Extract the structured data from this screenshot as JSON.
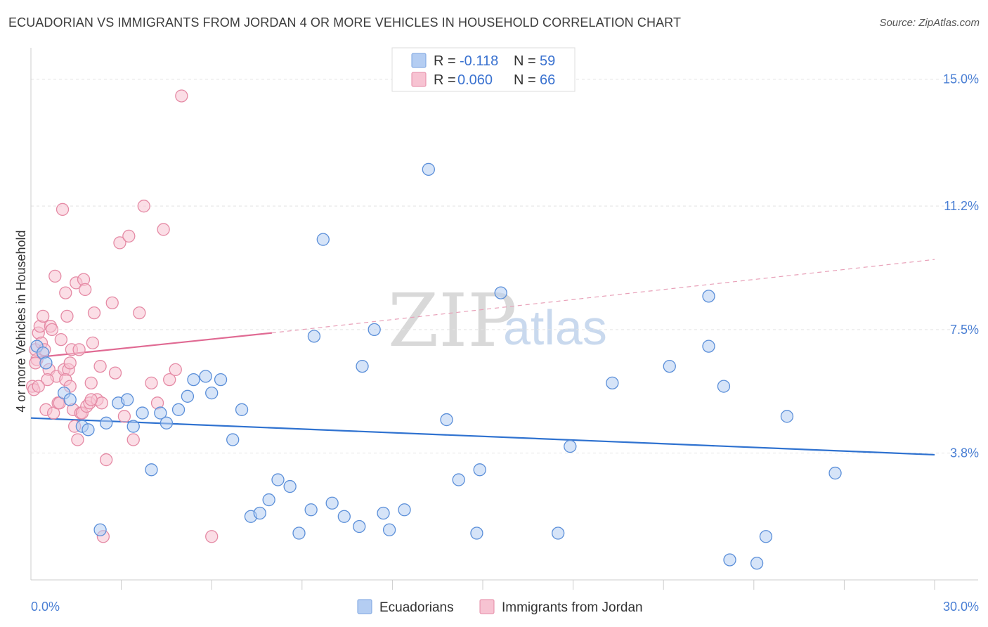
{
  "header": {
    "title": "ECUADORIAN VS IMMIGRANTS FROM JORDAN 4 OR MORE VEHICLES IN HOUSEHOLD CORRELATION CHART",
    "source": "Source: ZipAtlas.com"
  },
  "watermark": {
    "zip": "ZIP",
    "atlas": "atlas"
  },
  "legend_top": {
    "r_label": "R =",
    "n_label": "N =",
    "rows": [
      {
        "r": "-0.118",
        "n": "59",
        "color": "#a8c4f0"
      },
      {
        "r": "0.060",
        "n": "66",
        "color": "#f5b8cb"
      }
    ]
  },
  "legend_bottom": [
    {
      "label": "Ecuadorians",
      "color": "#a8c4f0"
    },
    {
      "label": "Immigrants from Jordan",
      "color": "#f5b8cb"
    }
  ],
  "chart_data": {
    "type": "scatter",
    "title": "ECUADORIAN VS IMMIGRANTS FROM JORDAN 4 OR MORE VEHICLES IN HOUSEHOLD CORRELATION CHART",
    "xlabel": "",
    "ylabel": "4 or more Vehicles in Household",
    "xlim": [
      0,
      30
    ],
    "ylim": [
      0,
      15.9
    ],
    "x_tick_labels": [
      "0.0%",
      "30.0%"
    ],
    "y_ticks": [
      3.8,
      7.5,
      11.2,
      15.0
    ],
    "y_tick_labels": [
      "3.8%",
      "7.5%",
      "11.2%",
      "15.0%"
    ],
    "grid": true,
    "series": [
      {
        "name": "Ecuadorians",
        "color": "#5b8fd9",
        "fill": "#b4cdf2",
        "trend": {
          "x": [
            0,
            30
          ],
          "y": [
            4.85,
            3.75
          ],
          "color": "#2f72d0"
        },
        "points": [
          [
            0.2,
            7.0
          ],
          [
            0.4,
            6.8
          ],
          [
            0.5,
            6.5
          ],
          [
            1.1,
            5.6
          ],
          [
            1.3,
            5.4
          ],
          [
            1.7,
            4.6
          ],
          [
            1.9,
            4.5
          ],
          [
            2.3,
            1.5
          ],
          [
            2.5,
            4.7
          ],
          [
            2.9,
            5.3
          ],
          [
            3.2,
            5.4
          ],
          [
            3.4,
            4.6
          ],
          [
            3.7,
            5.0
          ],
          [
            4.0,
            3.3
          ],
          [
            4.3,
            5.0
          ],
          [
            4.5,
            4.7
          ],
          [
            4.9,
            5.1
          ],
          [
            5.2,
            5.5
          ],
          [
            5.4,
            6.0
          ],
          [
            5.8,
            6.1
          ],
          [
            6.0,
            5.6
          ],
          [
            6.3,
            6.0
          ],
          [
            6.7,
            4.2
          ],
          [
            7.0,
            5.1
          ],
          [
            7.3,
            1.9
          ],
          [
            7.6,
            2.0
          ],
          [
            7.9,
            2.4
          ],
          [
            8.2,
            3.0
          ],
          [
            8.6,
            2.8
          ],
          [
            8.9,
            1.4
          ],
          [
            9.3,
            2.1
          ],
          [
            9.4,
            7.3
          ],
          [
            9.7,
            10.2
          ],
          [
            10.0,
            2.3
          ],
          [
            10.4,
            1.9
          ],
          [
            10.9,
            1.6
          ],
          [
            11.0,
            6.4
          ],
          [
            11.4,
            7.5
          ],
          [
            11.7,
            2.0
          ],
          [
            11.9,
            1.5
          ],
          [
            12.4,
            2.1
          ],
          [
            13.2,
            12.3
          ],
          [
            13.8,
            4.8
          ],
          [
            14.2,
            3.0
          ],
          [
            14.8,
            1.4
          ],
          [
            14.9,
            3.3
          ],
          [
            15.6,
            8.6
          ],
          [
            17.5,
            1.4
          ],
          [
            17.9,
            4.0
          ],
          [
            19.3,
            5.9
          ],
          [
            21.2,
            6.4
          ],
          [
            22.5,
            8.5
          ],
          [
            22.5,
            7.0
          ],
          [
            23.0,
            5.8
          ],
          [
            23.2,
            0.6
          ],
          [
            24.1,
            0.5
          ],
          [
            24.4,
            1.3
          ],
          [
            25.1,
            4.9
          ],
          [
            26.7,
            3.2
          ]
        ]
      },
      {
        "name": "Immigrants from Jordan",
        "color": "#e58aa5",
        "fill": "#f7c3d2",
        "trend": {
          "x": [
            0,
            8
          ],
          "y": [
            6.65,
            7.4
          ],
          "color": "#e06a93"
        },
        "trend_extended": {
          "x": [
            8,
            30
          ],
          "y": [
            7.4,
            9.6
          ],
          "color": "#e8a0b8"
        },
        "points": [
          [
            0.05,
            5.8
          ],
          [
            0.1,
            5.7
          ],
          [
            0.15,
            6.9
          ],
          [
            0.2,
            6.6
          ],
          [
            0.25,
            7.4
          ],
          [
            0.3,
            7.6
          ],
          [
            0.35,
            7.1
          ],
          [
            0.4,
            7.9
          ],
          [
            0.45,
            6.9
          ],
          [
            0.5,
            5.1
          ],
          [
            0.6,
            6.3
          ],
          [
            0.65,
            7.6
          ],
          [
            0.7,
            7.5
          ],
          [
            0.75,
            5.0
          ],
          [
            0.8,
            9.1
          ],
          [
            0.85,
            6.1
          ],
          [
            0.9,
            5.3
          ],
          [
            0.95,
            5.3
          ],
          [
            1.0,
            7.2
          ],
          [
            1.05,
            11.1
          ],
          [
            1.1,
            6.3
          ],
          [
            1.15,
            8.6
          ],
          [
            1.2,
            7.9
          ],
          [
            1.25,
            6.3
          ],
          [
            1.3,
            6.5
          ],
          [
            1.35,
            6.9
          ],
          [
            1.4,
            5.1
          ],
          [
            1.45,
            4.6
          ],
          [
            1.5,
            8.9
          ],
          [
            1.55,
            4.2
          ],
          [
            1.6,
            6.9
          ],
          [
            1.65,
            5.0
          ],
          [
            1.7,
            5.0
          ],
          [
            1.75,
            9.0
          ],
          [
            1.8,
            8.7
          ],
          [
            1.85,
            5.2
          ],
          [
            1.95,
            5.3
          ],
          [
            2.0,
            5.9
          ],
          [
            2.05,
            7.1
          ],
          [
            2.1,
            8.0
          ],
          [
            2.2,
            5.4
          ],
          [
            2.3,
            6.4
          ],
          [
            2.35,
            5.3
          ],
          [
            2.4,
            1.3
          ],
          [
            2.5,
            3.6
          ],
          [
            2.7,
            8.3
          ],
          [
            2.8,
            6.2
          ],
          [
            2.95,
            10.1
          ],
          [
            3.1,
            4.9
          ],
          [
            3.25,
            10.3
          ],
          [
            3.4,
            4.2
          ],
          [
            3.6,
            8.0
          ],
          [
            3.75,
            11.2
          ],
          [
            4.0,
            5.9
          ],
          [
            4.2,
            5.3
          ],
          [
            4.4,
            10.5
          ],
          [
            4.6,
            6.0
          ],
          [
            4.8,
            6.3
          ],
          [
            5.0,
            14.5
          ],
          [
            6.0,
            1.3
          ],
          [
            0.15,
            6.5
          ],
          [
            0.55,
            6.0
          ],
          [
            1.15,
            6.0
          ],
          [
            0.25,
            5.8
          ],
          [
            2.0,
            5.4
          ],
          [
            1.3,
            5.8
          ]
        ]
      }
    ]
  }
}
